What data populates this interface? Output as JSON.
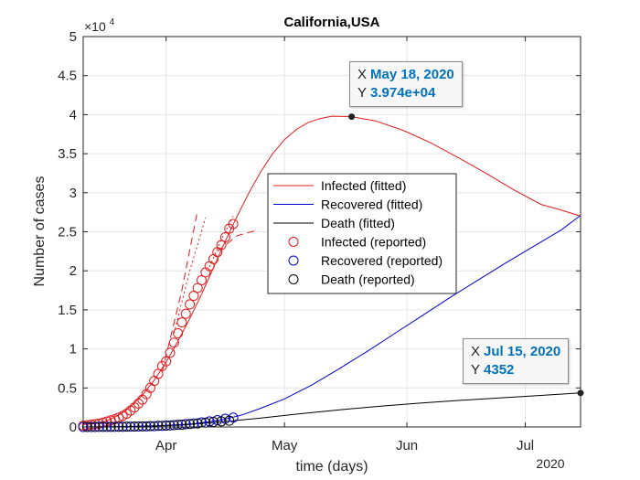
{
  "figure": {
    "background": "#ffffff",
    "axes_background": "#ffffff"
  },
  "chart_data": {
    "type": "line",
    "title": "California,USA",
    "xlabel": "time (days)",
    "ylabel": "Number of cases",
    "y_exponent_label": "×10",
    "y_exponent_power": "4",
    "year_label": "2020",
    "x_range": [
      "2020-03-11",
      "2020-07-15"
    ],
    "ylim": [
      0,
      50000
    ],
    "y_ticks": [
      {
        "value": 0,
        "label": "0"
      },
      {
        "value": 5000,
        "label": "0.5"
      },
      {
        "value": 10000,
        "label": "1"
      },
      {
        "value": 15000,
        "label": "1.5"
      },
      {
        "value": 20000,
        "label": "2"
      },
      {
        "value": 25000,
        "label": "2.5"
      },
      {
        "value": 30000,
        "label": "3"
      },
      {
        "value": 35000,
        "label": "3.5"
      },
      {
        "value": 40000,
        "label": "4"
      },
      {
        "value": 45000,
        "label": "4.5"
      },
      {
        "value": 50000,
        "label": "5"
      }
    ],
    "x_ticks": [
      {
        "value": "2020-04-01",
        "label": "Apr"
      },
      {
        "value": "2020-05-01",
        "label": "May"
      },
      {
        "value": "2020-06-01",
        "label": "Jun"
      },
      {
        "value": "2020-07-01",
        "label": "Jul"
      }
    ],
    "grid": true,
    "legend": {
      "placement": "center",
      "entries": [
        {
          "label": "Infected (fitted)",
          "color": "#e31a1c",
          "style": "line"
        },
        {
          "label": "Recovered (fitted)",
          "color": "#0000cc",
          "style": "line"
        },
        {
          "label": "Death (fitted)",
          "color": "#000000",
          "style": "line"
        },
        {
          "label": "Infected (reported)",
          "color": "#e31a1c",
          "style": "circle"
        },
        {
          "label": "Recovered (reported)",
          "color": "#0000cc",
          "style": "circle"
        },
        {
          "label": "Death  (reported)",
          "color": "#000000",
          "style": "circle"
        }
      ]
    },
    "series": [
      {
        "name": "Infected (fitted)",
        "color": "#e31a1c",
        "kind": "line",
        "points": [
          [
            "2020-03-11",
            300
          ],
          [
            "2020-03-14",
            450
          ],
          [
            "2020-03-17",
            800
          ],
          [
            "2020-03-20",
            1500
          ],
          [
            "2020-03-23",
            2600
          ],
          [
            "2020-03-26",
            4100
          ],
          [
            "2020-03-29",
            6000
          ],
          [
            "2020-04-01",
            8300
          ],
          [
            "2020-04-04",
            11000
          ],
          [
            "2020-04-07",
            13900
          ],
          [
            "2020-04-10",
            17000
          ],
          [
            "2020-04-13",
            20400
          ],
          [
            "2020-04-16",
            23800
          ],
          [
            "2020-04-19",
            27000
          ],
          [
            "2020-04-22",
            30000
          ],
          [
            "2020-04-25",
            32700
          ],
          [
            "2020-04-28",
            35000
          ],
          [
            "2020-05-01",
            36800
          ],
          [
            "2020-05-04",
            38100
          ],
          [
            "2020-05-07",
            39000
          ],
          [
            "2020-05-10",
            39500
          ],
          [
            "2020-05-13",
            39800
          ],
          [
            "2020-05-18",
            39740
          ],
          [
            "2020-05-24",
            39200
          ],
          [
            "2020-05-31",
            38000
          ],
          [
            "2020-06-07",
            36400
          ],
          [
            "2020-06-14",
            34500
          ],
          [
            "2020-06-21",
            32500
          ],
          [
            "2020-06-28",
            30400
          ],
          [
            "2020-07-05",
            28500
          ],
          [
            "2020-07-10",
            27800
          ],
          [
            "2020-07-15",
            27000
          ]
        ]
      },
      {
        "name": "Recovered (fitted)",
        "color": "#0000cc",
        "kind": "line",
        "points": [
          [
            "2020-03-11",
            0
          ],
          [
            "2020-03-20",
            30
          ],
          [
            "2020-03-30",
            150
          ],
          [
            "2020-04-08",
            400
          ],
          [
            "2020-04-15",
            900
          ],
          [
            "2020-04-20",
            1500
          ],
          [
            "2020-04-25",
            2400
          ],
          [
            "2020-05-01",
            3600
          ],
          [
            "2020-05-08",
            5400
          ],
          [
            "2020-05-15",
            7500
          ],
          [
            "2020-05-22",
            9700
          ],
          [
            "2020-05-29",
            12000
          ],
          [
            "2020-06-05",
            14300
          ],
          [
            "2020-06-12",
            16600
          ],
          [
            "2020-06-19",
            18800
          ],
          [
            "2020-06-26",
            21000
          ],
          [
            "2020-07-03",
            23100
          ],
          [
            "2020-07-10",
            25200
          ],
          [
            "2020-07-15",
            27100
          ]
        ]
      },
      {
        "name": "Death (fitted)",
        "color": "#000000",
        "kind": "line",
        "points": [
          [
            "2020-03-11",
            0
          ],
          [
            "2020-03-25",
            60
          ],
          [
            "2020-04-05",
            250
          ],
          [
            "2020-04-15",
            650
          ],
          [
            "2020-04-25",
            1150
          ],
          [
            "2020-05-05",
            1700
          ],
          [
            "2020-05-15",
            2200
          ],
          [
            "2020-05-25",
            2650
          ],
          [
            "2020-06-04",
            3050
          ],
          [
            "2020-06-14",
            3400
          ],
          [
            "2020-06-24",
            3700
          ],
          [
            "2020-07-04",
            4000
          ],
          [
            "2020-07-15",
            4352
          ]
        ]
      },
      {
        "name": "Infected (reported)",
        "color": "#e31a1c",
        "kind": "markers",
        "points": [
          [
            "2020-03-11",
            180
          ],
          [
            "2020-03-12",
            230
          ],
          [
            "2020-03-13",
            290
          ],
          [
            "2020-03-14",
            360
          ],
          [
            "2020-03-15",
            430
          ],
          [
            "2020-03-16",
            560
          ],
          [
            "2020-03-17",
            700
          ],
          [
            "2020-03-18",
            850
          ],
          [
            "2020-03-19",
            1000
          ],
          [
            "2020-03-20",
            1200
          ],
          [
            "2020-03-21",
            1400
          ],
          [
            "2020-03-22",
            1700
          ],
          [
            "2020-03-23",
            2100
          ],
          [
            "2020-03-24",
            2500
          ],
          [
            "2020-03-25",
            3000
          ],
          [
            "2020-03-26",
            3500
          ],
          [
            "2020-03-27",
            4200
          ],
          [
            "2020-03-28",
            5000
          ],
          [
            "2020-03-29",
            5900
          ],
          [
            "2020-03-30",
            6800
          ],
          [
            "2020-03-31",
            7800
          ],
          [
            "2020-04-01",
            8400
          ],
          [
            "2020-04-02",
            9500
          ],
          [
            "2020-04-03",
            10800
          ],
          [
            "2020-04-04",
            12000
          ],
          [
            "2020-04-05",
            13400
          ],
          [
            "2020-04-06",
            14500
          ],
          [
            "2020-04-07",
            15700
          ],
          [
            "2020-04-08",
            16800
          ],
          [
            "2020-04-09",
            17800
          ],
          [
            "2020-04-10",
            18800
          ],
          [
            "2020-04-11",
            19800
          ],
          [
            "2020-04-12",
            20600
          ],
          [
            "2020-04-13",
            21500
          ],
          [
            "2020-04-14",
            22400
          ],
          [
            "2020-04-15",
            23300
          ],
          [
            "2020-04-16",
            24300
          ],
          [
            "2020-04-17",
            25400
          ],
          [
            "2020-04-18",
            26000
          ]
        ]
      },
      {
        "name": "Recovered (reported)",
        "color": "#0000cc",
        "kind": "markers",
        "points": [
          [
            "2020-03-11",
            0
          ],
          [
            "2020-03-13",
            5
          ],
          [
            "2020-03-15",
            10
          ],
          [
            "2020-03-17",
            15
          ],
          [
            "2020-03-19",
            20
          ],
          [
            "2020-03-21",
            30
          ],
          [
            "2020-03-23",
            40
          ],
          [
            "2020-03-25",
            60
          ],
          [
            "2020-03-27",
            80
          ],
          [
            "2020-03-29",
            100
          ],
          [
            "2020-03-31",
            150
          ],
          [
            "2020-04-02",
            200
          ],
          [
            "2020-04-04",
            280
          ],
          [
            "2020-04-06",
            360
          ],
          [
            "2020-04-08",
            450
          ],
          [
            "2020-04-10",
            580
          ],
          [
            "2020-04-12",
            720
          ],
          [
            "2020-04-14",
            880
          ],
          [
            "2020-04-16",
            1050
          ],
          [
            "2020-04-18",
            1200
          ]
        ]
      },
      {
        "name": "Death  (reported)",
        "color": "#000000",
        "kind": "markers",
        "points": [
          [
            "2020-03-12",
            4
          ],
          [
            "2020-03-14",
            8
          ],
          [
            "2020-03-16",
            15
          ],
          [
            "2020-03-18",
            20
          ],
          [
            "2020-03-20",
            30
          ],
          [
            "2020-03-22",
            45
          ],
          [
            "2020-03-24",
            60
          ],
          [
            "2020-03-26",
            80
          ],
          [
            "2020-03-28",
            110
          ],
          [
            "2020-03-30",
            150
          ],
          [
            "2020-04-01",
            180
          ],
          [
            "2020-04-03",
            230
          ],
          [
            "2020-04-05",
            300
          ],
          [
            "2020-04-07",
            380
          ],
          [
            "2020-04-09",
            460
          ],
          [
            "2020-04-11",
            560
          ],
          [
            "2020-04-13",
            640
          ],
          [
            "2020-04-15",
            720
          ],
          [
            "2020-04-17",
            800
          ]
        ]
      },
      {
        "kind": "dashed",
        "color": "#e31a1c",
        "points": [
          [
            "2020-03-31",
            7000
          ],
          [
            "2020-04-05",
            17500
          ],
          [
            "2020-04-09",
            27800
          ]
        ]
      },
      {
        "kind": "dotted",
        "color": "#e31a1c",
        "points": [
          [
            "2020-04-03",
            12000
          ],
          [
            "2020-04-07",
            20000
          ],
          [
            "2020-04-11",
            26800
          ]
        ]
      },
      {
        "kind": "dotted",
        "color": "#e31a1c",
        "points": [
          [
            "2020-04-12",
            20500
          ],
          [
            "2020-04-15",
            24000
          ],
          [
            "2020-04-18",
            27000
          ]
        ]
      },
      {
        "kind": "dashed",
        "color": "#e31a1c",
        "points": [
          [
            "2020-04-14",
            22500
          ],
          [
            "2020-04-19",
            24500
          ],
          [
            "2020-04-24",
            25200
          ]
        ]
      }
    ],
    "datatips": [
      {
        "name": "datatip-peak",
        "point": [
          "2020-05-18",
          39740
        ],
        "x_key": "X",
        "x_value": "May 18, 2020",
        "y_key": "Y",
        "y_value": "3.974e+04"
      },
      {
        "name": "datatip-end",
        "point": [
          "2020-07-15",
          4352
        ],
        "x_key": "X",
        "x_value": "Jul 15, 2020",
        "y_key": "Y",
        "y_value": "4352"
      }
    ],
    "datatip_value_color": "#0072bd"
  }
}
